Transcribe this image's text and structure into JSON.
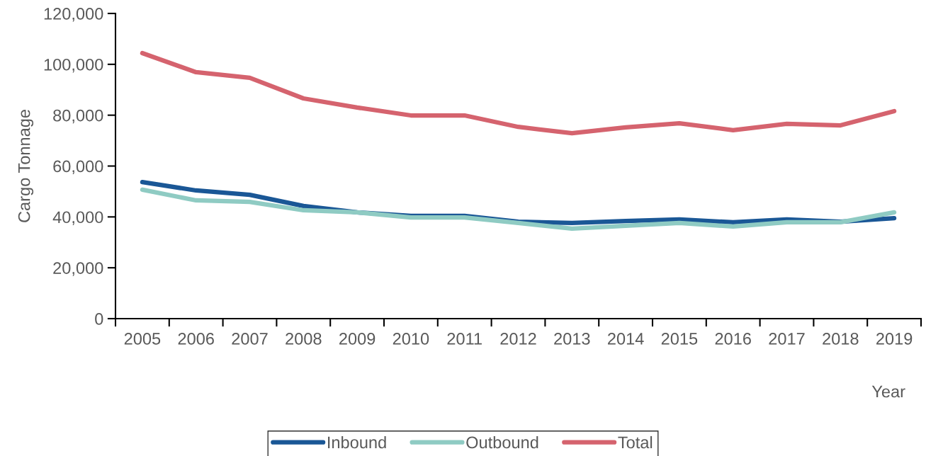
{
  "chart_data": {
    "type": "line",
    "categories": [
      "2005",
      "2006",
      "2007",
      "2008",
      "2009",
      "2010",
      "2011",
      "2012",
      "2013",
      "2014",
      "2015",
      "2016",
      "2017",
      "2018",
      "2019"
    ],
    "series": [
      {
        "name": "Inbound",
        "color": "#1a5796",
        "values": [
          53700,
          50400,
          48700,
          44300,
          41800,
          40400,
          40400,
          38100,
          37600,
          38400,
          39000,
          37900,
          39000,
          38100,
          39500
        ]
      },
      {
        "name": "Outbound",
        "color": "#8fcbc3",
        "values": [
          50700,
          46500,
          45900,
          42600,
          41800,
          39800,
          39800,
          37600,
          35400,
          36500,
          37600,
          36200,
          37900,
          37900,
          41800
        ]
      },
      {
        "name": "Total",
        "color": "#d5636e",
        "values": [
          104400,
          96900,
          94700,
          86600,
          83000,
          79900,
          79900,
          75400,
          72900,
          75200,
          76800,
          74100,
          76600,
          76000,
          81600
        ]
      }
    ],
    "xlabel": "Year",
    "ylabel": "Cargo Tonnage",
    "ylim": [
      0,
      120000
    ],
    "yticks": [
      {
        "value": 0,
        "label": "0"
      },
      {
        "value": 20000,
        "label": "20,000"
      },
      {
        "value": 40000,
        "label": "40,000"
      },
      {
        "value": 60000,
        "label": "60,000"
      },
      {
        "value": 80000,
        "label": "80,000"
      },
      {
        "value": 100000,
        "label": "100,000"
      },
      {
        "value": 120000,
        "label": "120,000"
      }
    ],
    "grid": false,
    "legend": "bottom",
    "line_style": "solid"
  }
}
